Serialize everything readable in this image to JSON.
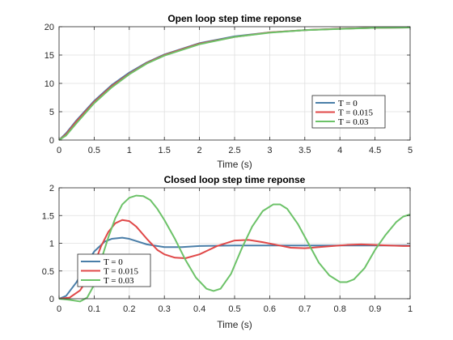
{
  "chart_data": [
    {
      "type": "line",
      "title": "Open loop step time reponse",
      "xlabel": "Time (s)",
      "ylabel": "",
      "xlim": [
        0,
        5
      ],
      "ylim": [
        0,
        20
      ],
      "xticks": [
        0,
        0.5,
        1,
        1.5,
        2,
        2.5,
        3,
        3.5,
        4,
        4.5,
        5
      ],
      "xtick_labels": [
        "0",
        "0.5",
        "1",
        "1.5",
        "2",
        "2.5",
        "3",
        "3.5",
        "4",
        "4.5",
        "5"
      ],
      "yticks": [
        0,
        5,
        10,
        15,
        20
      ],
      "ytick_labels": [
        "0",
        "5",
        "10",
        "15",
        "20"
      ],
      "grid": true,
      "legend_position": "bottom-right",
      "series": [
        {
          "name": "T = 0",
          "color": "#4a7ea8",
          "x": [
            0,
            0.1,
            0.25,
            0.5,
            0.75,
            1,
            1.25,
            1.5,
            2,
            2.5,
            3,
            3.5,
            4,
            4.5,
            5
          ],
          "y": [
            0,
            1.2,
            3.5,
            6.9,
            9.7,
            11.9,
            13.7,
            15.1,
            17.1,
            18.3,
            19.0,
            19.4,
            19.65,
            19.8,
            19.85
          ]
        },
        {
          "name": "T = 0.015",
          "color": "#e04848",
          "x": [
            0,
            0.1,
            0.25,
            0.5,
            0.75,
            1,
            1.25,
            1.5,
            2,
            2.5,
            3,
            3.5,
            4,
            4.5,
            5
          ],
          "y": [
            0,
            1.0,
            3.3,
            6.7,
            9.5,
            11.7,
            13.6,
            15.0,
            17.0,
            18.2,
            19.0,
            19.4,
            19.65,
            19.8,
            19.85
          ]
        },
        {
          "name": "T = 0.03",
          "color": "#6cc268",
          "x": [
            0,
            0.1,
            0.25,
            0.5,
            0.75,
            1,
            1.25,
            1.5,
            2,
            2.5,
            3,
            3.5,
            4,
            4.5,
            5
          ],
          "y": [
            0,
            0.8,
            3.0,
            6.5,
            9.3,
            11.6,
            13.5,
            14.9,
            16.9,
            18.2,
            18.95,
            19.4,
            19.6,
            19.8,
            19.85
          ]
        }
      ]
    },
    {
      "type": "line",
      "title": "Closed loop step time reponse",
      "xlabel": "Time (s)",
      "ylabel": "",
      "xlim": [
        0,
        1
      ],
      "ylim": [
        0,
        2
      ],
      "xticks": [
        0,
        0.1,
        0.2,
        0.3,
        0.4,
        0.5,
        0.6,
        0.7,
        0.8,
        0.9,
        1
      ],
      "xtick_labels": [
        "0",
        "0.1",
        "0.2",
        "0.3",
        "0.4",
        "0.5",
        "0.6",
        "0.7",
        "0.8",
        "0.9",
        "1"
      ],
      "yticks": [
        0,
        0.5,
        1,
        1.5,
        2
      ],
      "ytick_labels": [
        "0",
        "0.5",
        "1",
        "1.5",
        "2"
      ],
      "grid": true,
      "legend_position": "bottom-left",
      "series": [
        {
          "name": "T = 0",
          "color": "#4a7ea8",
          "x": [
            0,
            0.02,
            0.05,
            0.08,
            0.1,
            0.13,
            0.15,
            0.18,
            0.2,
            0.25,
            0.3,
            0.35,
            0.4,
            0.5,
            0.6,
            0.7,
            0.8,
            0.9,
            1
          ],
          "y": [
            0,
            0.05,
            0.3,
            0.65,
            0.85,
            1.03,
            1.08,
            1.1,
            1.08,
            0.98,
            0.93,
            0.93,
            0.95,
            0.96,
            0.96,
            0.96,
            0.96,
            0.96,
            0.96
          ]
        },
        {
          "name": "T = 0.015",
          "color": "#e04848",
          "x": [
            0,
            0.03,
            0.06,
            0.08,
            0.1,
            0.12,
            0.14,
            0.16,
            0.18,
            0.2,
            0.22,
            0.25,
            0.28,
            0.3,
            0.33,
            0.36,
            0.4,
            0.45,
            0.5,
            0.54,
            0.58,
            0.62,
            0.66,
            0.7,
            0.74,
            0.78,
            0.82,
            0.86,
            0.9,
            0.94,
            0.98,
            1
          ],
          "y": [
            0,
            0.02,
            0.15,
            0.35,
            0.62,
            0.95,
            1.2,
            1.36,
            1.42,
            1.4,
            1.3,
            1.08,
            0.88,
            0.8,
            0.74,
            0.73,
            0.8,
            0.95,
            1.05,
            1.06,
            1.02,
            0.97,
            0.92,
            0.91,
            0.93,
            0.95,
            0.97,
            0.98,
            0.97,
            0.96,
            0.95,
            0.95
          ]
        },
        {
          "name": "T = 0.03",
          "color": "#6cc268",
          "x": [
            0,
            0.03,
            0.06,
            0.08,
            0.1,
            0.12,
            0.14,
            0.16,
            0.18,
            0.2,
            0.22,
            0.24,
            0.26,
            0.28,
            0.3,
            0.33,
            0.36,
            0.39,
            0.42,
            0.44,
            0.46,
            0.49,
            0.52,
            0.55,
            0.58,
            0.61,
            0.63,
            0.65,
            0.68,
            0.71,
            0.74,
            0.77,
            0.8,
            0.82,
            0.84,
            0.87,
            0.9,
            0.93,
            0.96,
            0.98,
            1
          ],
          "y": [
            0,
            -0.02,
            -0.05,
            0.02,
            0.25,
            0.7,
            1.1,
            1.45,
            1.7,
            1.82,
            1.86,
            1.85,
            1.78,
            1.62,
            1.42,
            1.08,
            0.7,
            0.38,
            0.18,
            0.14,
            0.18,
            0.45,
            0.9,
            1.3,
            1.58,
            1.7,
            1.7,
            1.62,
            1.35,
            1.0,
            0.65,
            0.42,
            0.3,
            0.3,
            0.35,
            0.55,
            0.88,
            1.15,
            1.38,
            1.48,
            1.52
          ]
        }
      ]
    }
  ]
}
